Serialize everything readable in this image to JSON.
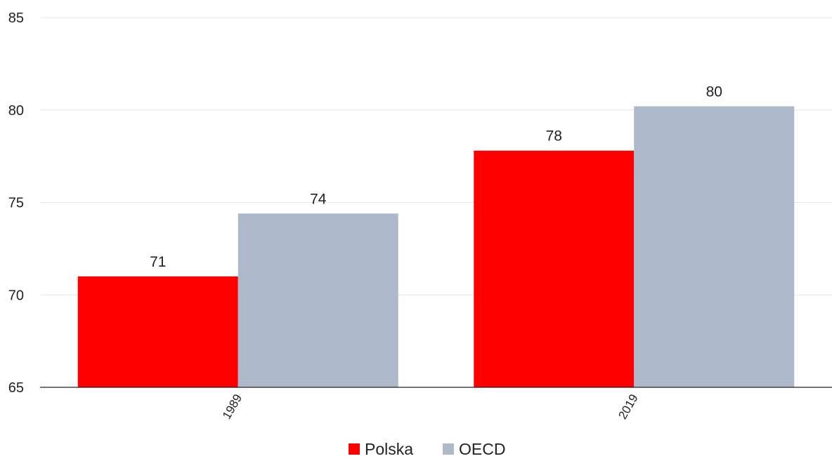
{
  "chart_data": {
    "type": "bar",
    "title": "",
    "xlabel": "",
    "ylabel": "",
    "categories": [
      "1989",
      "2019"
    ],
    "series": [
      {
        "name": "Polska",
        "values": [
          71.0,
          77.8
        ],
        "labels": [
          "71",
          "78"
        ],
        "color": "#ff0000"
      },
      {
        "name": "OECD",
        "values": [
          74.4,
          80.2
        ],
        "labels": [
          "74",
          "80"
        ],
        "color": "#adb9ca"
      }
    ],
    "ylim": [
      65,
      85
    ],
    "yticks": [
      65,
      70,
      75,
      80,
      85
    ],
    "grid": true,
    "legend": "bottom-center"
  }
}
